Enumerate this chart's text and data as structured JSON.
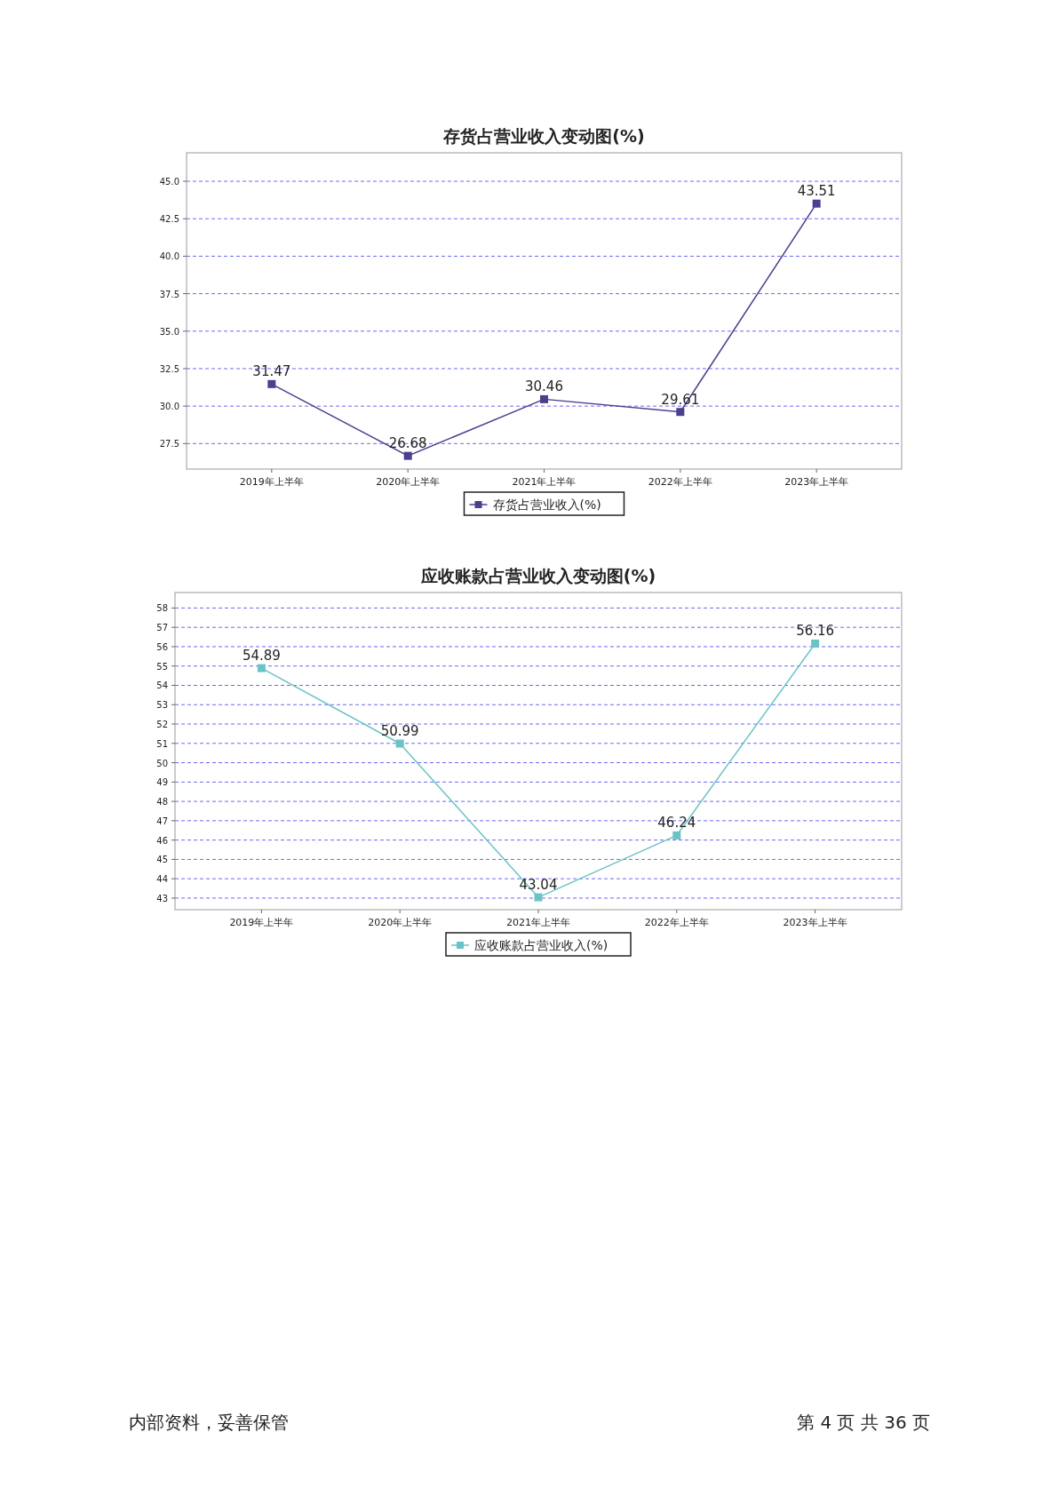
{
  "chart_data": [
    {
      "type": "line",
      "title": "存货占营业收入变动图(%)",
      "categories": [
        "2019年上半年",
        "2020年上半年",
        "2021年上半年",
        "2022年上半年",
        "2023年上半年"
      ],
      "series": [
        {
          "name": "存货占营业收入(%)",
          "color": "#4b3f8f",
          "values": [
            31.47,
            26.68,
            30.46,
            29.61,
            43.51
          ]
        }
      ],
      "ylim": [
        25.8,
        46.9
      ],
      "yticks": [
        {
          "value": 27.5,
          "label": "27.5"
        },
        {
          "value": 30,
          "label": "30.0"
        },
        {
          "value": 32.5,
          "label": "32.5"
        },
        {
          "value": 35,
          "label": "35.0"
        },
        {
          "value": 37.5,
          "label": "37.5"
        },
        {
          "value": 40,
          "label": "40.0"
        },
        {
          "value": 42.5,
          "label": "42.5"
        },
        {
          "value": 45,
          "label": "45.0"
        }
      ],
      "grid": "y",
      "legend": "bottom",
      "marker": "square",
      "line_style": "solid",
      "data_labels": true
    },
    {
      "type": "line",
      "title": "应收账款占营业收入变动图(%)",
      "categories": [
        "2019年上半年",
        "2020年上半年",
        "2021年上半年",
        "2022年上半年",
        "2023年上半年"
      ],
      "series": [
        {
          "name": "应收账款占营业收入(%)",
          "color": "#6cc3c6",
          "values": [
            54.89,
            50.99,
            43.04,
            46.24,
            56.16
          ]
        }
      ],
      "ylim": [
        42.4,
        58.8
      ],
      "yticks": [
        43,
        44,
        45,
        46,
        47,
        48,
        49,
        50,
        51,
        52,
        53,
        54,
        55,
        56,
        57,
        58
      ],
      "grid": "y",
      "legend": "bottom",
      "marker": "square",
      "line_style": "solid",
      "data_labels": true,
      "annotations": [
        "内部资料，妥善保管",
        "第 4 页   共 36 页"
      ]
    }
  ]
}
